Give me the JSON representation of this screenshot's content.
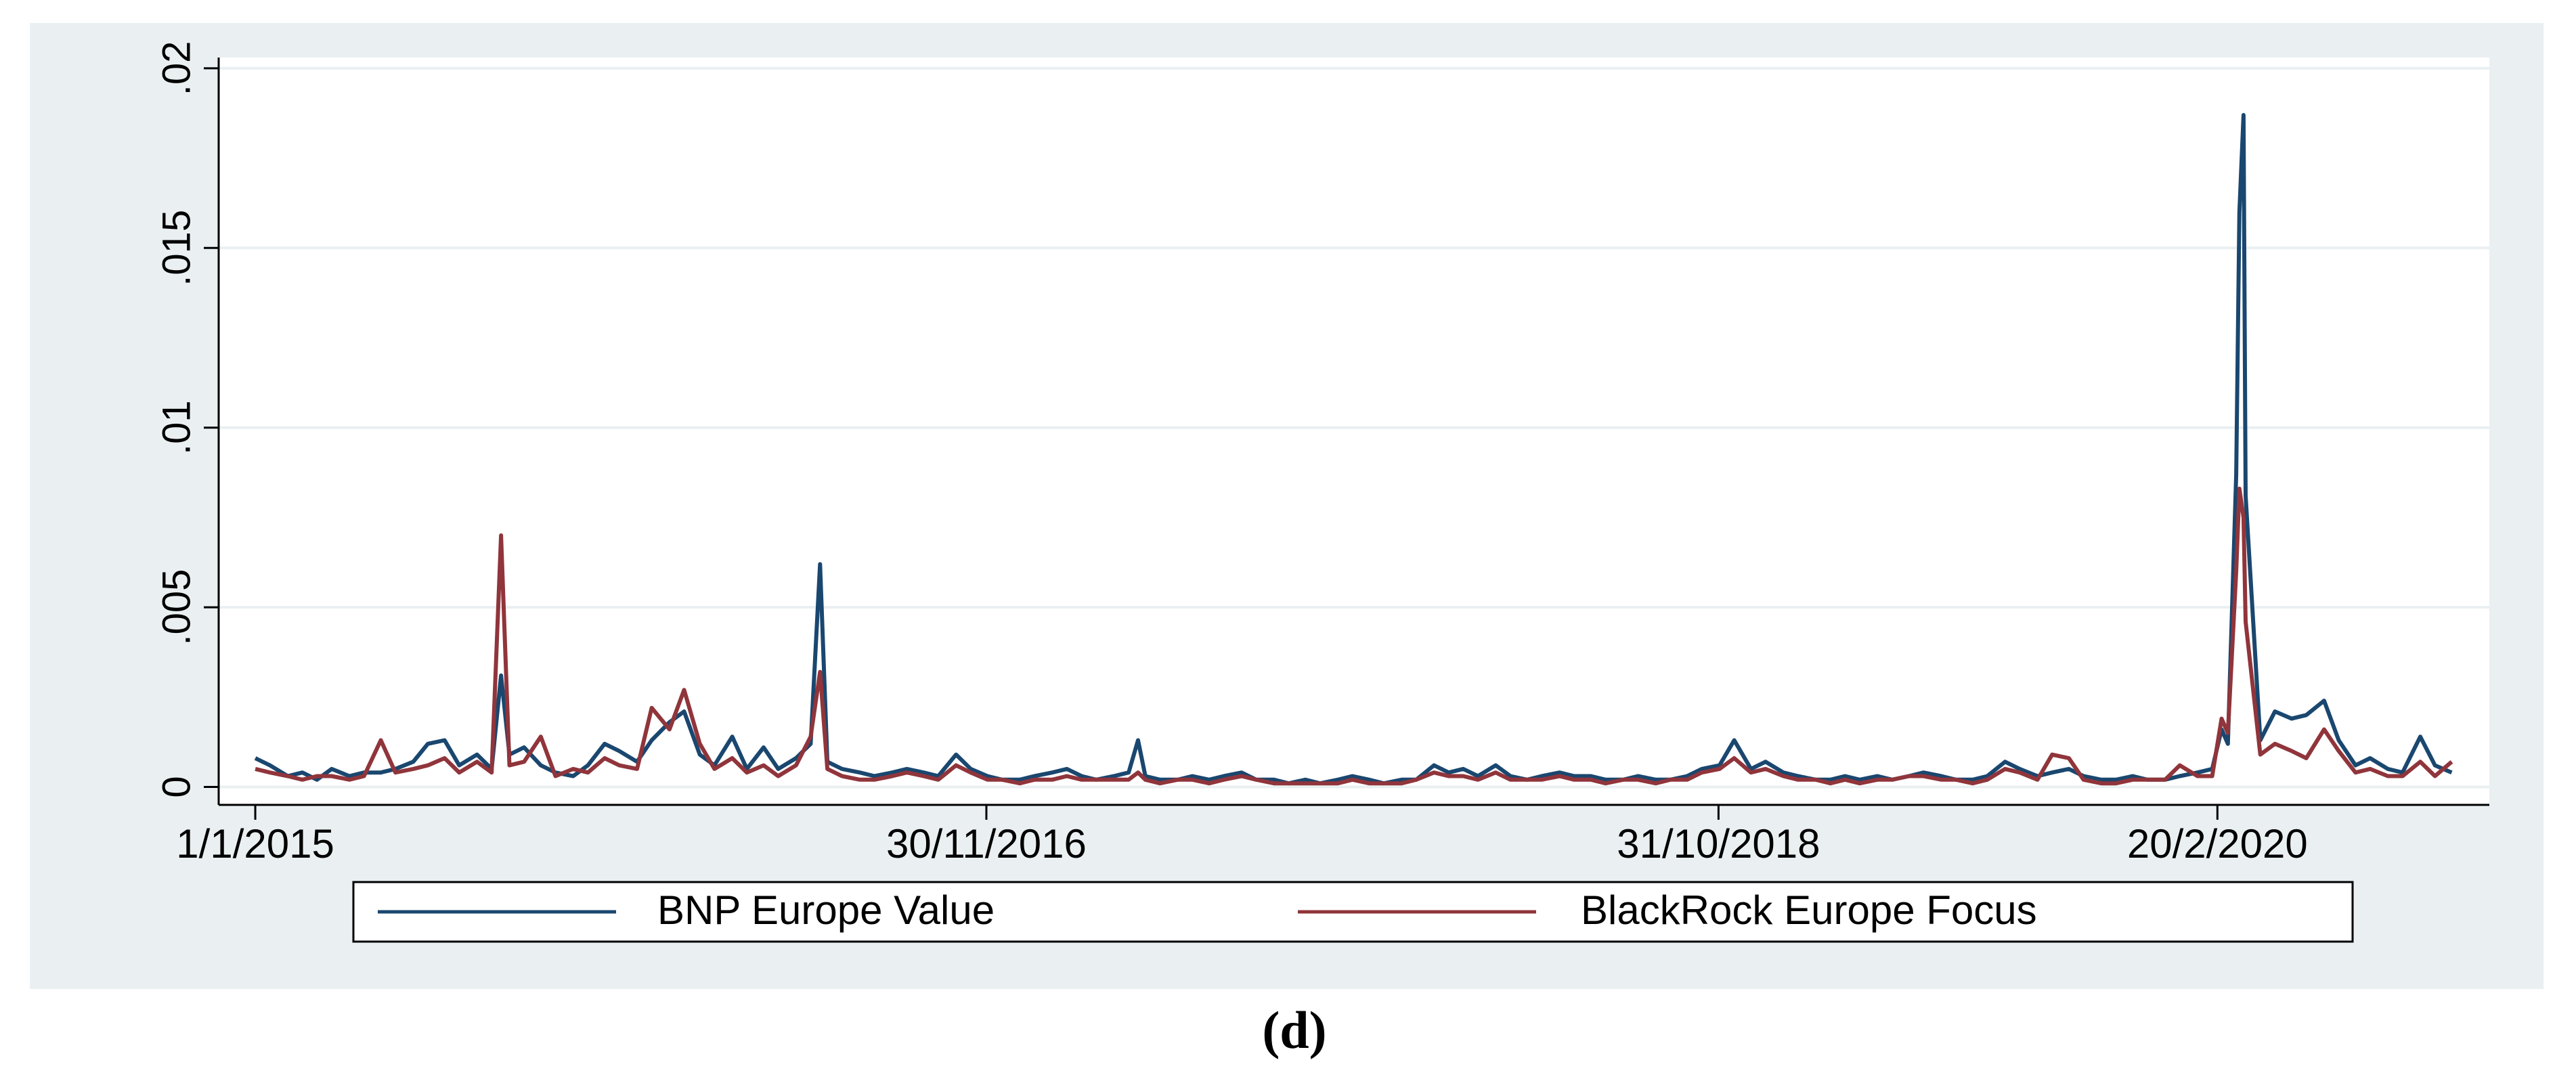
{
  "chart_data": {
    "type": "line",
    "caption": "(d)",
    "x": [
      "1/1/2015",
      "15/1/2015",
      "1/2/2015",
      "15/2/2015",
      "1/3/2015",
      "15/3/2015",
      "1/4/2015",
      "15/4/2015",
      "1/5/2015",
      "15/5/2015",
      "1/6/2015",
      "15/6/2015",
      "1/7/2015",
      "15/7/2015",
      "1/8/2015",
      "15/8/2015",
      "24/8/2015",
      "1/9/2015",
      "15/9/2015",
      "1/10/2015",
      "15/10/2015",
      "1/11/2015",
      "15/11/2015",
      "1/12/2015",
      "15/12/2015",
      "1/1/2016",
      "15/1/2016",
      "1/2/2016",
      "15/2/2016",
      "1/3/2016",
      "15/3/2016",
      "1/4/2016",
      "15/4/2016",
      "1/5/2016",
      "15/5/2016",
      "1/6/2016",
      "15/6/2016",
      "24/6/2016",
      "1/7/2016",
      "15/7/2016",
      "1/8/2016",
      "15/8/2016",
      "1/9/2016",
      "15/9/2016",
      "1/10/2016",
      "15/10/2016",
      "1/11/2016",
      "15/11/2016",
      "1/12/2016",
      "15/12/2016",
      "1/1/2017",
      "15/1/2017",
      "1/2/2017",
      "15/2/2017",
      "1/3/2017",
      "15/3/2017",
      "1/4/2017",
      "15/4/2017",
      "24/4/2017",
      "1/5/2017",
      "15/5/2017",
      "1/6/2017",
      "15/6/2017",
      "1/7/2017",
      "15/7/2017",
      "1/8/2017",
      "15/8/2017",
      "1/9/2017",
      "15/9/2017",
      "1/10/2017",
      "15/10/2017",
      "1/11/2017",
      "15/11/2017",
      "1/12/2017",
      "15/12/2017",
      "1/1/2018",
      "15/1/2018",
      "1/2/2018",
      "15/2/2018",
      "1/3/2018",
      "15/3/2018",
      "1/4/2018",
      "15/4/2018",
      "1/5/2018",
      "15/5/2018",
      "1/6/2018",
      "15/6/2018",
      "1/7/2018",
      "15/7/2018",
      "1/8/2018",
      "15/8/2018",
      "1/9/2018",
      "15/9/2018",
      "1/10/2018",
      "15/10/2018",
      "1/11/2018",
      "15/11/2018",
      "1/12/2018",
      "15/12/2018",
      "1/1/2019",
      "15/1/2019",
      "1/2/2019",
      "15/2/2019",
      "1/3/2019",
      "15/3/2019",
      "1/4/2019",
      "15/4/2019",
      "1/5/2019",
      "15/5/2019",
      "1/6/2019",
      "15/6/2019",
      "1/7/2019",
      "15/7/2019",
      "1/8/2019",
      "15/8/2019",
      "1/9/2019",
      "15/9/2019",
      "1/10/2019",
      "15/10/2019",
      "1/11/2019",
      "15/11/2019",
      "1/12/2019",
      "15/12/2019",
      "1/1/2020",
      "15/1/2020",
      "1/2/2020",
      "15/2/2020",
      "24/2/2020",
      "1/3/2020",
      "9/3/2020",
      "12/3/2020",
      "16/3/2020",
      "18/3/2020",
      "1/4/2020",
      "15/4/2020",
      "1/5/2020",
      "15/5/2020",
      "1/6/2020",
      "15/6/2020",
      "1/7/2020",
      "15/7/2020",
      "1/8/2020",
      "15/8/2020",
      "1/9/2020",
      "15/9/2020",
      "1/10/2020"
    ],
    "series": [
      {
        "name": "BNP Europe Value",
        "color": "#1a476f",
        "values": [
          0.0008,
          0.0006,
          0.0003,
          0.0004,
          0.0002,
          0.0005,
          0.0003,
          0.0004,
          0.0004,
          0.0005,
          0.0007,
          0.0012,
          0.0013,
          0.0006,
          0.0009,
          0.0005,
          0.0031,
          0.0009,
          0.0011,
          0.0006,
          0.0004,
          0.0003,
          0.0006,
          0.0012,
          0.001,
          0.0007,
          0.0013,
          0.0018,
          0.0021,
          0.0009,
          0.0006,
          0.0014,
          0.0005,
          0.0011,
          0.0005,
          0.0008,
          0.0012,
          0.0062,
          0.0007,
          0.0005,
          0.0004,
          0.0003,
          0.0004,
          0.0005,
          0.0004,
          0.0003,
          0.0009,
          0.0005,
          0.0003,
          0.0002,
          0.0002,
          0.0003,
          0.0004,
          0.0005,
          0.0003,
          0.0002,
          0.0003,
          0.0004,
          0.0013,
          0.0003,
          0.0002,
          0.0002,
          0.0003,
          0.0002,
          0.0003,
          0.0004,
          0.0002,
          0.0002,
          0.0001,
          0.0002,
          0.0001,
          0.0002,
          0.0003,
          0.0002,
          0.0001,
          0.0002,
          0.0002,
          0.0006,
          0.0004,
          0.0005,
          0.0003,
          0.0006,
          0.0003,
          0.0002,
          0.0003,
          0.0004,
          0.0003,
          0.0003,
          0.0002,
          0.0002,
          0.0003,
          0.0002,
          0.0002,
          0.0003,
          0.0005,
          0.0006,
          0.0013,
          0.0005,
          0.0007,
          0.0004,
          0.0003,
          0.0002,
          0.0002,
          0.0003,
          0.0002,
          0.0003,
          0.0002,
          0.0003,
          0.0004,
          0.0003,
          0.0002,
          0.0002,
          0.0003,
          0.0007,
          0.0005,
          0.0003,
          0.0004,
          0.0005,
          0.0003,
          0.0002,
          0.0002,
          0.0003,
          0.0002,
          0.0002,
          0.0003,
          0.0004,
          0.0005,
          0.0016,
          0.0012,
          0.0087,
          0.016,
          0.0187,
          0.0081,
          0.0013,
          0.0021,
          0.0019,
          0.002,
          0.0024,
          0.0013,
          0.0006,
          0.0008,
          0.0005,
          0.0004,
          0.0014,
          0.0006,
          0.0004
        ]
      },
      {
        "name": "BlackRock Europe Focus",
        "color": "#90353b",
        "values": [
          0.0005,
          0.0004,
          0.0003,
          0.0002,
          0.0003,
          0.0003,
          0.0002,
          0.0003,
          0.0013,
          0.0004,
          0.0005,
          0.0006,
          0.0008,
          0.0004,
          0.0007,
          0.0004,
          0.007,
          0.0006,
          0.0007,
          0.0014,
          0.0003,
          0.0005,
          0.0004,
          0.0008,
          0.0006,
          0.0005,
          0.0022,
          0.0016,
          0.0027,
          0.0012,
          0.0005,
          0.0008,
          0.0004,
          0.0006,
          0.0003,
          0.0006,
          0.0014,
          0.0032,
          0.0005,
          0.0003,
          0.0002,
          0.0002,
          0.0003,
          0.0004,
          0.0003,
          0.0002,
          0.0006,
          0.0004,
          0.0002,
          0.0002,
          0.0001,
          0.0002,
          0.0002,
          0.0003,
          0.0002,
          0.0002,
          0.0002,
          0.0002,
          0.0004,
          0.0002,
          0.0001,
          0.0002,
          0.0002,
          0.0001,
          0.0002,
          0.0003,
          0.0002,
          0.0001,
          0.0001,
          0.0001,
          0.0001,
          0.0001,
          0.0002,
          0.0001,
          0.0001,
          0.0001,
          0.0002,
          0.0004,
          0.0003,
          0.0003,
          0.0002,
          0.0004,
          0.0002,
          0.0002,
          0.0002,
          0.0003,
          0.0002,
          0.0002,
          0.0001,
          0.0002,
          0.0002,
          0.0001,
          0.0002,
          0.0002,
          0.0004,
          0.0005,
          0.0008,
          0.0004,
          0.0005,
          0.0003,
          0.0002,
          0.0002,
          0.0001,
          0.0002,
          0.0001,
          0.0002,
          0.0002,
          0.0003,
          0.0003,
          0.0002,
          0.0002,
          0.0001,
          0.0002,
          0.0005,
          0.0004,
          0.0002,
          0.0009,
          0.0008,
          0.0002,
          0.0001,
          0.0001,
          0.0002,
          0.0002,
          0.0002,
          0.0006,
          0.0003,
          0.0003,
          0.0019,
          0.0015,
          0.006,
          0.0083,
          0.0075,
          0.0046,
          0.0009,
          0.0012,
          0.001,
          0.0008,
          0.0016,
          0.001,
          0.0004,
          0.0005,
          0.0003,
          0.0003,
          0.0007,
          0.0003,
          0.0007
        ]
      }
    ],
    "xlim": [
      "27/11/2014",
      "6/11/2020"
    ],
    "xticks": [
      "1/1/2015",
      "30/11/2016",
      "31/10/2018",
      "20/2/2020"
    ],
    "ylim": [
      -0.0005,
      0.0203
    ],
    "yticks": [
      0,
      {
        "value": 0.005,
        "label": ".005"
      },
      {
        "value": 0.01,
        "label": ".01"
      },
      {
        "value": 0.015,
        "label": ".015"
      },
      {
        "value": 0.02,
        "label": ".02"
      }
    ],
    "grid": true,
    "legend": "bottom"
  }
}
